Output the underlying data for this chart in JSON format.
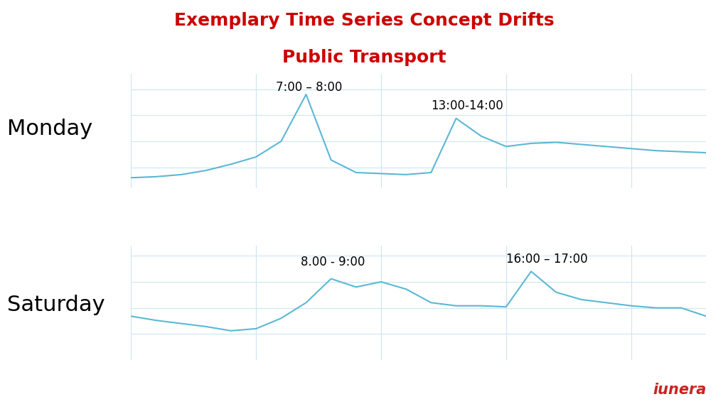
{
  "title_line1": "Exemplary Time Series Concept Drifts",
  "title_line2": "Public Transport",
  "title_color": "#cc0000",
  "background_color": "#ffffff",
  "grid_color": "#cce5f0",
  "line_color": "#5bb8d4",
  "monday_label": "Monday",
  "saturday_label": "Saturday",
  "monday_annotation1": "7:00 – 8:00",
  "monday_annotation2": "13:00-14:00",
  "saturday_annotation1": "8.00 - 9:00",
  "saturday_annotation2": "16:00 – 17:00",
  "monday_x": [
    0,
    1,
    2,
    3,
    4,
    5,
    6,
    7,
    8,
    9,
    10,
    11,
    12,
    13,
    14,
    15,
    16,
    17,
    18,
    19,
    20,
    21,
    22,
    23
  ],
  "monday_y": [
    1.5,
    1.6,
    1.8,
    2.2,
    2.8,
    3.5,
    5.0,
    9.5,
    3.2,
    2.0,
    1.9,
    1.8,
    2.0,
    7.2,
    5.5,
    4.5,
    4.8,
    4.9,
    4.7,
    4.5,
    4.3,
    4.1,
    4.0,
    3.9
  ],
  "saturday_x": [
    0,
    1,
    2,
    3,
    4,
    5,
    6,
    7,
    8,
    9,
    10,
    11,
    12,
    13,
    14,
    15,
    16,
    17,
    18,
    19,
    20,
    21,
    22,
    23
  ],
  "saturday_y": [
    4.2,
    3.8,
    3.5,
    3.2,
    2.8,
    3.0,
    4.0,
    5.5,
    7.8,
    7.0,
    7.5,
    6.8,
    5.5,
    5.2,
    5.2,
    5.1,
    8.5,
    6.5,
    5.8,
    5.5,
    5.2,
    5.0,
    5.0,
    4.2
  ],
  "iunera_text": "iunera",
  "iunera_color": "#cc2222"
}
